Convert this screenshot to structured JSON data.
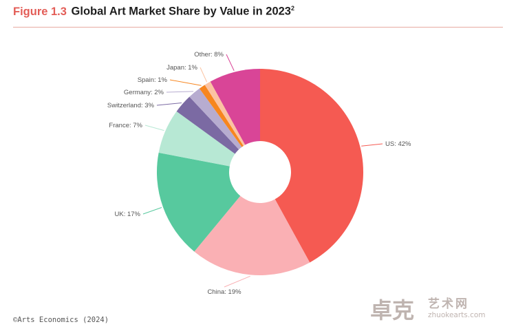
{
  "title": {
    "figure_label": "Figure 1.3",
    "text": "Global Art Market Share by Value in 2023",
    "footnote_mark": "2"
  },
  "chart_data": {
    "type": "pie",
    "subtype": "donut",
    "title": "Global Art Market Share by Value in 2023",
    "unit": "%",
    "slices": [
      {
        "name": "US",
        "value": 42,
        "label": "US: 42%",
        "color": "#f55a52"
      },
      {
        "name": "China",
        "value": 19,
        "label": "China: 19%",
        "color": "#fab0b4"
      },
      {
        "name": "UK",
        "value": 17,
        "label": "UK: 17%",
        "color": "#57c99e"
      },
      {
        "name": "France",
        "value": 7,
        "label": "France: 7%",
        "color": "#b7e8d4"
      },
      {
        "name": "Switzerland",
        "value": 3,
        "label": "Switzerland: 3%",
        "color": "#7b6aa3"
      },
      {
        "name": "Germany",
        "value": 2,
        "label": "Germany: 2%",
        "color": "#b7acd0"
      },
      {
        "name": "Spain",
        "value": 1,
        "label": "Spain: 1%",
        "color": "#f7861f"
      },
      {
        "name": "Japan",
        "value": 1,
        "label": "Japan: 1%",
        "color": "#fbc3a2"
      },
      {
        "name": "Other",
        "value": 8,
        "label": "Other: 8%",
        "color": "#d94597"
      }
    ]
  },
  "source": "©Arts Economics (2024)",
  "watermark": {
    "logo_text": "卓克",
    "text_cn": "艺术网",
    "url": "zhuokearts.com"
  }
}
